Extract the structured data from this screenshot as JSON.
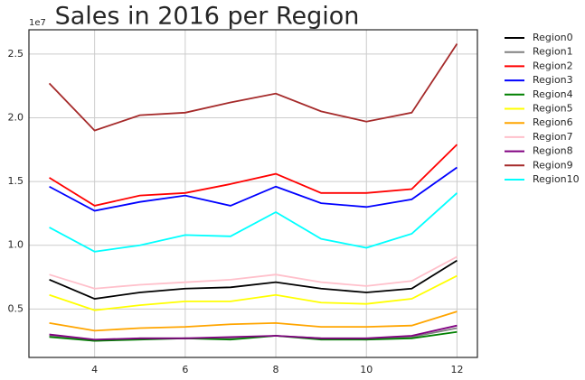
{
  "chart_data": {
    "type": "line",
    "title": "Sales in 2016 per Region",
    "offset_label": "1e7",
    "x": [
      3,
      4,
      5,
      6,
      7,
      8,
      9,
      10,
      11,
      12
    ],
    "xlim": [
      2.55,
      12.45
    ],
    "xticks": [
      4,
      6,
      8,
      10,
      12
    ],
    "ylim": [
      0.12,
      2.69
    ],
    "yticks": [
      0.5,
      {
        "value": 1,
        "label": "1.0"
      },
      1.5,
      {
        "value": 2,
        "label": "2.0"
      },
      2.5
    ],
    "grid": true,
    "legend": "outside-right",
    "series": [
      {
        "name": "Region0",
        "color": "#000000",
        "values": [
          0.73,
          0.58,
          0.63,
          0.66,
          0.67,
          0.71,
          0.66,
          0.63,
          0.66,
          0.88
        ]
      },
      {
        "name": "Region1",
        "color": "#808080",
        "values": [
          0.29,
          0.25,
          0.27,
          0.27,
          0.27,
          0.29,
          0.27,
          0.26,
          0.28,
          0.35
        ]
      },
      {
        "name": "Region2",
        "color": "#ff0000",
        "values": [
          1.53,
          1.31,
          1.39,
          1.41,
          1.48,
          1.56,
          1.41,
          1.41,
          1.44,
          1.79
        ]
      },
      {
        "name": "Region3",
        "color": "#0000ff",
        "values": [
          1.46,
          1.27,
          1.34,
          1.39,
          1.31,
          1.46,
          1.33,
          1.3,
          1.36,
          1.61
        ]
      },
      {
        "name": "Region4",
        "color": "#008000",
        "values": [
          0.28,
          0.25,
          0.26,
          0.27,
          0.26,
          0.29,
          0.26,
          0.26,
          0.27,
          0.32
        ]
      },
      {
        "name": "Region5",
        "color": "#ffff00",
        "values": [
          0.61,
          0.49,
          0.53,
          0.56,
          0.56,
          0.61,
          0.55,
          0.54,
          0.58,
          0.76
        ]
      },
      {
        "name": "Region6",
        "color": "#ffa500",
        "values": [
          0.39,
          0.33,
          0.35,
          0.36,
          0.38,
          0.39,
          0.36,
          0.36,
          0.37,
          0.48
        ]
      },
      {
        "name": "Region7",
        "color": "#ffc0cb",
        "values": [
          0.77,
          0.66,
          0.69,
          0.71,
          0.73,
          0.77,
          0.71,
          0.68,
          0.72,
          0.91
        ]
      },
      {
        "name": "Region8",
        "color": "#800080",
        "values": [
          0.3,
          0.26,
          0.27,
          0.27,
          0.28,
          0.29,
          0.27,
          0.27,
          0.29,
          0.37
        ]
      },
      {
        "name": "Region9",
        "color": "#a52a2a",
        "values": [
          2.27,
          1.9,
          2.02,
          2.04,
          2.12,
          2.19,
          2.05,
          1.97,
          2.04,
          2.58
        ]
      },
      {
        "name": "Region10",
        "color": "#00ffff",
        "values": [
          1.14,
          0.95,
          1.0,
          1.08,
          1.07,
          1.26,
          1.05,
          0.98,
          1.09,
          1.41
        ]
      }
    ]
  }
}
